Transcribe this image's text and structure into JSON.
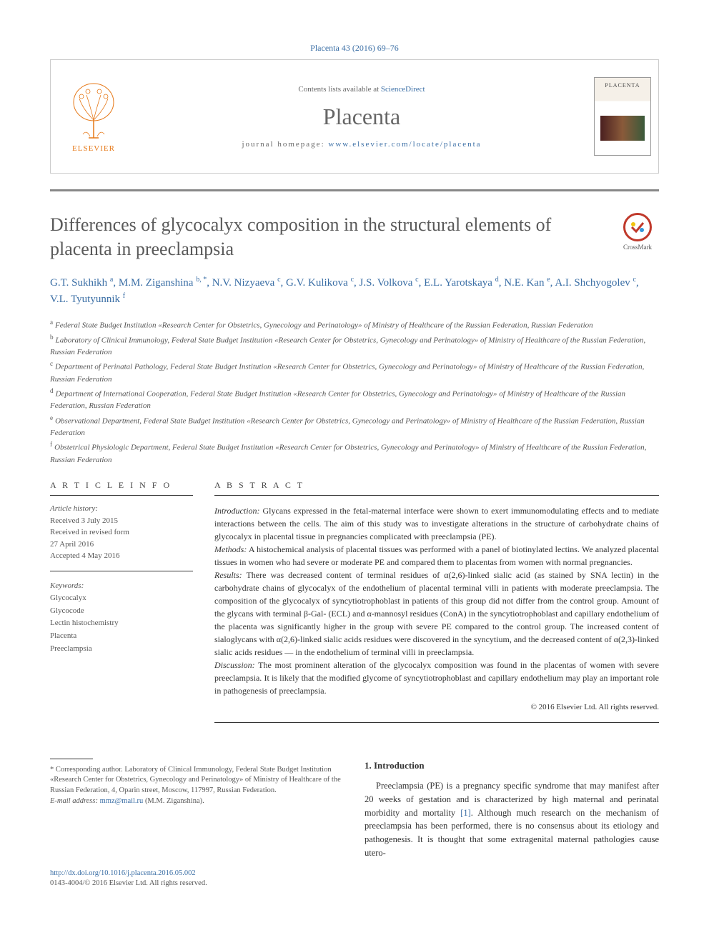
{
  "citation": "Placenta 43 (2016) 69–76",
  "header": {
    "contents_prefix": "Contents lists available at ",
    "contents_link": "ScienceDirect",
    "journal": "Placenta",
    "homepage_prefix": "journal homepage: ",
    "homepage_url": "www.elsevier.com/locate/placenta",
    "publisher": "ELSEVIER",
    "cover_title": "PLACENTA"
  },
  "crossmark": "CrossMark",
  "title": "Differences of glycocalyx composition in the structural elements of placenta in preeclampsia",
  "authors_html": "G.T. Sukhikh <sup>a</sup>, M.M. Ziganshina <sup>b, *</sup>, N.V. Nizyaeva <sup>c</sup>, G.V. Kulikova <sup>c</sup>, J.S. Volkova <sup>c</sup>, E.L. Yarotskaya <sup>d</sup>, N.E. Kan <sup>e</sup>, A.I. Shchyogolev <sup>c</sup>, V.L. Tyutyunnik <sup>f</sup>",
  "affiliations": [
    {
      "sup": "a",
      "text": "Federal State Budget Institution «Research Center for Obstetrics, Gynecology and Perinatology» of Ministry of Healthcare of the Russian Federation, Russian Federation"
    },
    {
      "sup": "b",
      "text": "Laboratory of Clinical Immunology, Federal State Budget Institution «Research Center for Obstetrics, Gynecology and Perinatology» of Ministry of Healthcare of the Russian Federation, Russian Federation"
    },
    {
      "sup": "c",
      "text": "Department of Perinatal Pathology, Federal State Budget Institution «Research Center for Obstetrics, Gynecology and Perinatology» of Ministry of Healthcare of the Russian Federation, Russian Federation"
    },
    {
      "sup": "d",
      "text": "Department of International Cooperation, Federal State Budget Institution «Research Center for Obstetrics, Gynecology and Perinatology» of Ministry of Healthcare of the Russian Federation, Russian Federation"
    },
    {
      "sup": "e",
      "text": "Observational Department, Federal State Budget Institution «Research Center for Obstetrics, Gynecology and Perinatology» of Ministry of Healthcare of the Russian Federation, Russian Federation"
    },
    {
      "sup": "f",
      "text": "Obstetrical Physiologic Department, Federal State Budget Institution «Research Center for Obstetrics, Gynecology and Perinatology» of Ministry of Healthcare of the Russian Federation, Russian Federation"
    }
  ],
  "article_info": {
    "header": "A R T I C L E   I N F O",
    "history_label": "Article history:",
    "received": "Received 3 July 2015",
    "revised": "Received in revised form",
    "revised_date": "27 April 2016",
    "accepted": "Accepted 4 May 2016",
    "keywords_label": "Keywords:",
    "keywords": [
      "Glycocalyx",
      "Glycocode",
      "Lectin histochemistry",
      "Placenta",
      "Preeclampsia"
    ]
  },
  "abstract": {
    "header": "A B S T R A C T",
    "introduction_label": "Introduction:",
    "introduction": " Glycans expressed in the fetal-maternal interface were shown to exert immunomodulating effects and to mediate interactions between the cells. The aim of this study was to investigate alterations in the structure of carbohydrate chains of glycocalyx in placental tissue in pregnancies complicated with preeclampsia (PE).",
    "methods_label": "Methods:",
    "methods": " A histochemical analysis of placental tissues was performed with a panel of biotinylated lectins. We analyzed placental tissues in women who had severe or moderate PE and compared them to placentas from women with normal pregnancies.",
    "results_label": "Results:",
    "results": " There was decreased content of terminal residues of α(2,6)-linked sialic acid (as stained by SNA lectin) in the carbohydrate chains of glycocalyx of the endothelium of placental terminal villi in patients with moderate preeclampsia. The composition of the glycocalyx of syncytiotrophoblast in patients of this group did not differ from the control group. Amount of the glycans with terminal β-Gal- (ECL) and α-mannosyl residues (ConA) in the syncytiotrophoblast and capillary endothelium of the placenta was significantly higher in the group with severe PE compared to the control group. The increased content of sialoglycans with α(2,6)-linked sialic acids residues were discovered in the syncytium, and the decreased content of α(2,3)-linked sialic acids residues — in the endothelium of terminal villi in preeclampsia.",
    "discussion_label": "Discussion:",
    "discussion": " The most prominent alteration of the glycocalyx composition was found in the placentas of women with severe preeclampsia. It is likely that the modified glycome of syncytiotrophoblast and capillary endothelium may play an important role in pathogenesis of preeclampsia.",
    "copyright": "© 2016 Elsevier Ltd. All rights reserved."
  },
  "intro": {
    "heading": "1.  Introduction",
    "body": "Preeclampsia (PE) is a pregnancy specific syndrome that may manifest after 20 weeks of gestation and is characterized by high maternal and perinatal morbidity and mortality [1]. Although much research on the mechanism of preeclampsia has been performed, there is no consensus about its etiology and pathogenesis. It is thought that some extragenital maternal pathologies cause utero-"
  },
  "corresponding": {
    "star": "*",
    "text": " Corresponding author. Laboratory of Clinical Immunology, Federal State Budget Institution «Research Center for Obstetrics, Gynecology and Perinatology» of Ministry of Healthcare of the Russian Federation, 4, Oparin street, Moscow, 117997, Russian Federation.",
    "email_label": "E-mail address: ",
    "email": "mmz@mail.ru",
    "email_suffix": " (M.M. Ziganshina)."
  },
  "footer": {
    "doi": "http://dx.doi.org/10.1016/j.placenta.2016.05.002",
    "issn_line": "0143-4004/© 2016 Elsevier Ltd. All rights reserved."
  },
  "colors": {
    "link": "#3a6ea5",
    "elsevier_orange": "#e67817",
    "grey_text": "#5a5a5a",
    "rule": "#333333"
  }
}
